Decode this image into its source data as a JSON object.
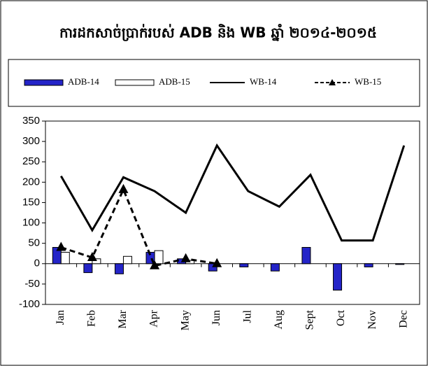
{
  "chart_data": {
    "type": "combo",
    "title": "ការដកសាច់ប្រាក់របស់ ADB និង WB ឆ្នាំ ២០១៤-២០១៥",
    "categories": [
      "Jan",
      "Feb",
      "Mar",
      "Apr",
      "May",
      "Jun",
      "Jul",
      "Aug",
      "Sept",
      "Oct",
      "Nov",
      "Dec"
    ],
    "ylim": [
      -100,
      350
    ],
    "yticks": [
      -100,
      -50,
      0,
      50,
      100,
      150,
      200,
      250,
      300,
      350
    ],
    "series": [
      {
        "name": "ADB-14",
        "type": "bar",
        "color": "#2424c8",
        "values": [
          40,
          -22,
          -25,
          28,
          12,
          -18,
          -8,
          -18,
          40,
          -65,
          -8,
          -2
        ]
      },
      {
        "name": "ADB-15",
        "type": "bar",
        "color": "#ffffff",
        "values": [
          28,
          12,
          18,
          32,
          8,
          null,
          null,
          null,
          null,
          null,
          null,
          null
        ]
      },
      {
        "name": "WB-14",
        "type": "line",
        "color": "#000000",
        "dashed": false,
        "marker": "none",
        "values": [
          215,
          82,
          212,
          178,
          125,
          290,
          178,
          140,
          218,
          57,
          57,
          290
        ]
      },
      {
        "name": "WB-15",
        "type": "line",
        "color": "#000000",
        "dashed": true,
        "marker": "triangle",
        "values": [
          40,
          15,
          182,
          -5,
          12,
          0,
          null,
          null,
          null,
          null,
          null,
          null
        ]
      }
    ]
  }
}
